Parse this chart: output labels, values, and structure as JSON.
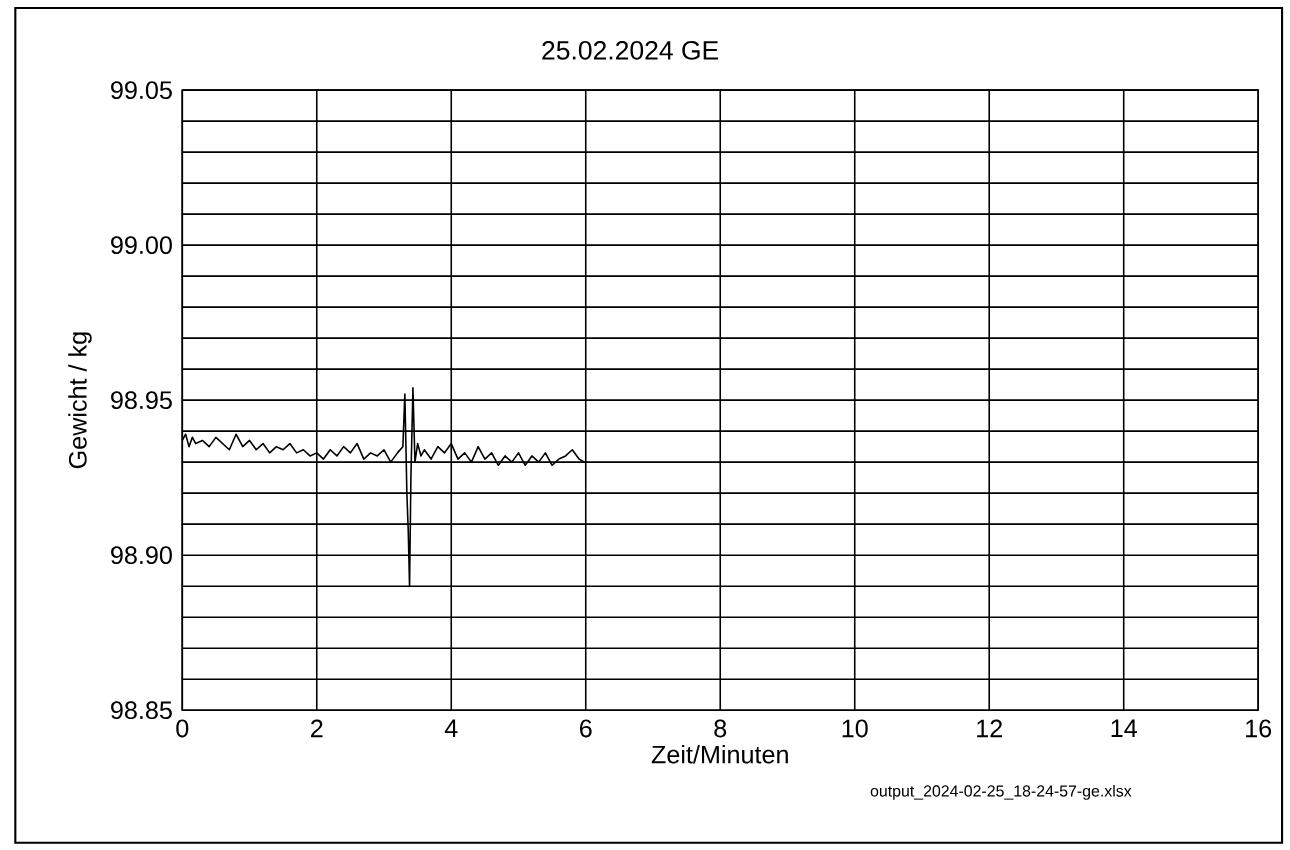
{
  "chart_data": {
    "type": "line",
    "title": "25.02.2024  GE",
    "xlabel": "Zeit/Minuten",
    "ylabel": "Gewicht / kg",
    "annotations": [
      "output_2024-02-25_18-24-57-ge.xlsx"
    ],
    "xlim": [
      0,
      16
    ],
    "xticks": [
      0,
      2,
      4,
      6,
      8,
      10,
      12,
      14,
      16
    ],
    "ylim": [
      98.85,
      99.05
    ],
    "yticks": [
      98.85,
      {
        "value": 98.86,
        "label": null
      },
      {
        "value": 98.87,
        "label": null
      },
      {
        "value": 98.88,
        "label": null
      },
      {
        "value": 98.89,
        "label": null
      },
      {
        "value": 98.9,
        "label": "98.90"
      },
      {
        "value": 98.91,
        "label": null
      },
      {
        "value": 98.92,
        "label": null
      },
      {
        "value": 98.93,
        "label": null
      },
      {
        "value": 98.94,
        "label": null
      },
      98.95,
      {
        "value": 98.96,
        "label": null
      },
      {
        "value": 98.97,
        "label": null
      },
      {
        "value": 98.98,
        "label": null
      },
      {
        "value": 98.99,
        "label": null
      },
      {
        "value": 99.0,
        "label": "99.00"
      },
      {
        "value": 99.01,
        "label": null
      },
      {
        "value": 99.02,
        "label": null
      },
      {
        "value": 99.03,
        "label": null
      },
      {
        "value": 99.04,
        "label": null
      },
      99.05
    ],
    "grid": true,
    "marker": "none",
    "line_style": "solid",
    "series": [
      {
        "color": "#000000",
        "x": [
          0,
          0.05,
          0.1,
          0.15,
          0.2,
          0.3,
          0.4,
          0.5,
          0.6,
          0.7,
          0.8,
          0.9,
          1.0,
          1.1,
          1.2,
          1.3,
          1.4,
          1.5,
          1.6,
          1.7,
          1.8,
          1.9,
          2.0,
          2.1,
          2.2,
          2.3,
          2.4,
          2.5,
          2.6,
          2.7,
          2.8,
          2.9,
          3.0,
          3.1,
          3.2,
          3.28,
          3.31,
          3.34,
          3.36,
          3.38,
          3.4,
          3.43,
          3.46,
          3.5,
          3.55,
          3.6,
          3.7,
          3.8,
          3.9,
          4.0,
          4.1,
          4.2,
          4.3,
          4.4,
          4.5,
          4.6,
          4.7,
          4.8,
          4.9,
          5.0,
          5.1,
          5.2,
          5.3,
          5.4,
          5.5,
          5.6,
          5.7,
          5.8,
          5.9,
          5.98
        ],
        "values": [
          98.937,
          98.939,
          98.935,
          98.938,
          98.936,
          98.937,
          98.935,
          98.938,
          98.936,
          98.934,
          98.939,
          98.935,
          98.937,
          98.934,
          98.936,
          98.933,
          98.935,
          98.934,
          98.936,
          98.933,
          98.934,
          98.932,
          98.933,
          98.931,
          98.934,
          98.932,
          98.935,
          98.933,
          98.936,
          98.931,
          98.933,
          98.932,
          98.934,
          98.93,
          98.933,
          98.935,
          98.952,
          98.92,
          98.908,
          98.89,
          98.925,
          98.954,
          98.93,
          98.936,
          98.932,
          98.934,
          98.931,
          98.935,
          98.933,
          98.936,
          98.931,
          98.933,
          98.93,
          98.935,
          98.931,
          98.933,
          98.929,
          98.932,
          98.93,
          98.933,
          98.929,
          98.932,
          98.93,
          98.933,
          98.929,
          98.931,
          98.932,
          98.934,
          98.931,
          98.93
        ]
      }
    ]
  }
}
